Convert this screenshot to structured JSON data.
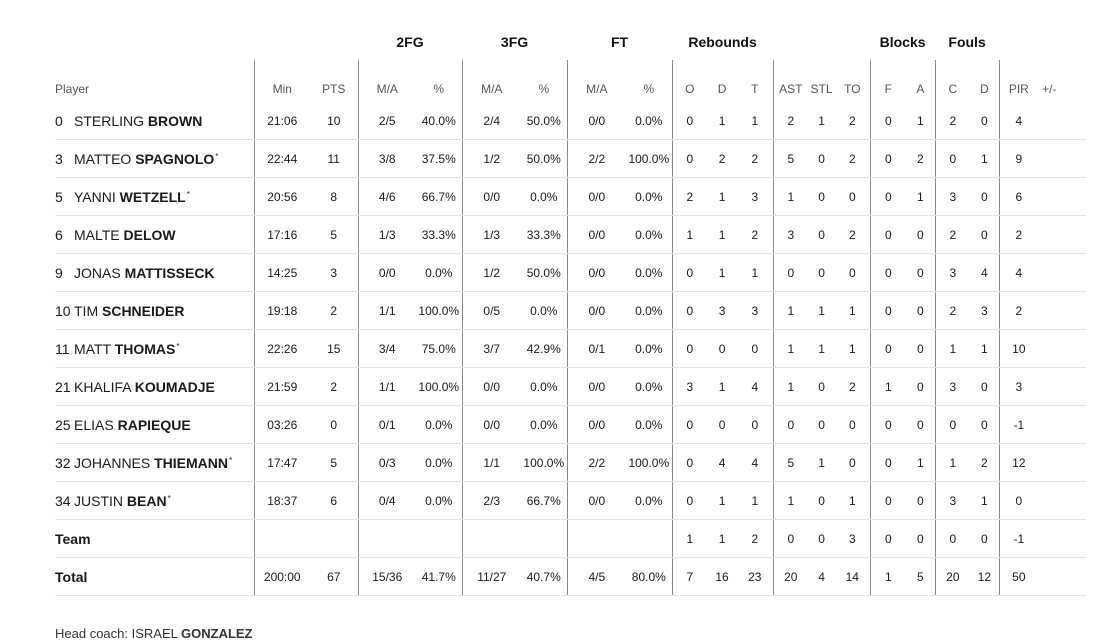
{
  "groups": {
    "twofg": "2FG",
    "threefg": "3FG",
    "ft": "FT",
    "rebounds": "Rebounds",
    "blocks": "Blocks",
    "fouls": "Fouls"
  },
  "headers": {
    "player": "Player",
    "min": "Min",
    "pts": "PTS",
    "fg2_ma": "M/A",
    "fg2_pct": "%",
    "fg3_ma": "M/A",
    "fg3_pct": "%",
    "ft_ma": "M/A",
    "ft_pct": "%",
    "reb_o": "O",
    "reb_d": "D",
    "reb_t": "T",
    "ast": "AST",
    "stl": "STL",
    "to": "TO",
    "blk_f": "F",
    "blk_a": "A",
    "foul_c": "C",
    "foul_d": "D",
    "pir": "PIR",
    "pm": "+/-"
  },
  "players": [
    {
      "num": "0",
      "first": "STERLING",
      "last": "BROWN",
      "star": "",
      "min": "21:06",
      "pts": "10",
      "fg2": "2/5",
      "fg2p": "40.0%",
      "fg3": "2/4",
      "fg3p": "50.0%",
      "ft": "0/0",
      "ftp": "0.0%",
      "o": "0",
      "d": "1",
      "t": "1",
      "ast": "2",
      "stl": "1",
      "to": "2",
      "bf": "0",
      "ba": "1",
      "fc": "2",
      "fd": "0",
      "pir": "4",
      "pm": ""
    },
    {
      "num": "3",
      "first": "MATTEO",
      "last": "SPAGNOLO",
      "star": "*",
      "min": "22:44",
      "pts": "11",
      "fg2": "3/8",
      "fg2p": "37.5%",
      "fg3": "1/2",
      "fg3p": "50.0%",
      "ft": "2/2",
      "ftp": "100.0%",
      "o": "0",
      "d": "2",
      "t": "2",
      "ast": "5",
      "stl": "0",
      "to": "2",
      "bf": "0",
      "ba": "2",
      "fc": "0",
      "fd": "1",
      "pir": "9",
      "pm": ""
    },
    {
      "num": "5",
      "first": "YANNI",
      "last": "WETZELL",
      "star": "*",
      "min": "20:56",
      "pts": "8",
      "fg2": "4/6",
      "fg2p": "66.7%",
      "fg3": "0/0",
      "fg3p": "0.0%",
      "ft": "0/0",
      "ftp": "0.0%",
      "o": "2",
      "d": "1",
      "t": "3",
      "ast": "1",
      "stl": "0",
      "to": "0",
      "bf": "0",
      "ba": "1",
      "fc": "3",
      "fd": "0",
      "pir": "6",
      "pm": ""
    },
    {
      "num": "6",
      "first": "MALTE",
      "last": "DELOW",
      "star": "",
      "min": "17:16",
      "pts": "5",
      "fg2": "1/3",
      "fg2p": "33.3%",
      "fg3": "1/3",
      "fg3p": "33.3%",
      "ft": "0/0",
      "ftp": "0.0%",
      "o": "1",
      "d": "1",
      "t": "2",
      "ast": "3",
      "stl": "0",
      "to": "2",
      "bf": "0",
      "ba": "0",
      "fc": "2",
      "fd": "0",
      "pir": "2",
      "pm": ""
    },
    {
      "num": "9",
      "first": "JONAS",
      "last": "MATTISSECK",
      "star": "",
      "min": "14:25",
      "pts": "3",
      "fg2": "0/0",
      "fg2p": "0.0%",
      "fg3": "1/2",
      "fg3p": "50.0%",
      "ft": "0/0",
      "ftp": "0.0%",
      "o": "0",
      "d": "1",
      "t": "1",
      "ast": "0",
      "stl": "0",
      "to": "0",
      "bf": "0",
      "ba": "0",
      "fc": "3",
      "fd": "4",
      "pir": "4",
      "pm": ""
    },
    {
      "num": "10",
      "first": "TIM",
      "last": "SCHNEIDER",
      "star": "",
      "min": "19:18",
      "pts": "2",
      "fg2": "1/1",
      "fg2p": "100.0%",
      "fg3": "0/5",
      "fg3p": "0.0%",
      "ft": "0/0",
      "ftp": "0.0%",
      "o": "0",
      "d": "3",
      "t": "3",
      "ast": "1",
      "stl": "1",
      "to": "1",
      "bf": "0",
      "ba": "0",
      "fc": "2",
      "fd": "3",
      "pir": "2",
      "pm": ""
    },
    {
      "num": "11",
      "first": "MATT",
      "last": "THOMAS",
      "star": "*",
      "min": "22:26",
      "pts": "15",
      "fg2": "3/4",
      "fg2p": "75.0%",
      "fg3": "3/7",
      "fg3p": "42.9%",
      "ft": "0/1",
      "ftp": "0.0%",
      "o": "0",
      "d": "0",
      "t": "0",
      "ast": "1",
      "stl": "1",
      "to": "1",
      "bf": "0",
      "ba": "0",
      "fc": "1",
      "fd": "1",
      "pir": "10",
      "pm": ""
    },
    {
      "num": "21",
      "first": "KHALIFA",
      "last": "KOUMADJE",
      "star": "",
      "min": "21:59",
      "pts": "2",
      "fg2": "1/1",
      "fg2p": "100.0%",
      "fg3": "0/0",
      "fg3p": "0.0%",
      "ft": "0/0",
      "ftp": "0.0%",
      "o": "3",
      "d": "1",
      "t": "4",
      "ast": "1",
      "stl": "0",
      "to": "2",
      "bf": "1",
      "ba": "0",
      "fc": "3",
      "fd": "0",
      "pir": "3",
      "pm": ""
    },
    {
      "num": "25",
      "first": "ELIAS",
      "last": "RAPIEQUE",
      "star": "",
      "min": "03:26",
      "pts": "0",
      "fg2": "0/1",
      "fg2p": "0.0%",
      "fg3": "0/0",
      "fg3p": "0.0%",
      "ft": "0/0",
      "ftp": "0.0%",
      "o": "0",
      "d": "0",
      "t": "0",
      "ast": "0",
      "stl": "0",
      "to": "0",
      "bf": "0",
      "ba": "0",
      "fc": "0",
      "fd": "0",
      "pir": "-1",
      "pm": ""
    },
    {
      "num": "32",
      "first": "JOHANNES",
      "last": "THIEMANN",
      "star": "*",
      "min": "17:47",
      "pts": "5",
      "fg2": "0/3",
      "fg2p": "0.0%",
      "fg3": "1/1",
      "fg3p": "100.0%",
      "ft": "2/2",
      "ftp": "100.0%",
      "o": "0",
      "d": "4",
      "t": "4",
      "ast": "5",
      "stl": "1",
      "to": "0",
      "bf": "0",
      "ba": "1",
      "fc": "1",
      "fd": "2",
      "pir": "12",
      "pm": ""
    },
    {
      "num": "34",
      "first": "JUSTIN",
      "last": "BEAN",
      "star": "*",
      "min": "18:37",
      "pts": "6",
      "fg2": "0/4",
      "fg2p": "0.0%",
      "fg3": "2/3",
      "fg3p": "66.7%",
      "ft": "0/0",
      "ftp": "0.0%",
      "o": "0",
      "d": "1",
      "t": "1",
      "ast": "1",
      "stl": "0",
      "to": "1",
      "bf": "0",
      "ba": "0",
      "fc": "3",
      "fd": "1",
      "pir": "0",
      "pm": ""
    }
  ],
  "team": {
    "label": "Team",
    "min": "",
    "pts": "",
    "fg2": "",
    "fg2p": "",
    "fg3": "",
    "fg3p": "",
    "ft": "",
    "ftp": "",
    "o": "1",
    "d": "1",
    "t": "2",
    "ast": "0",
    "stl": "0",
    "to": "3",
    "bf": "0",
    "ba": "0",
    "fc": "0",
    "fd": "0",
    "pir": "-1",
    "pm": ""
  },
  "total": {
    "label": "Total",
    "min": "200:00",
    "pts": "67",
    "fg2": "15/36",
    "fg2p": "41.7%",
    "fg3": "11/27",
    "fg3p": "40.7%",
    "ft": "4/5",
    "ftp": "80.0%",
    "o": "7",
    "d": "16",
    "t": "23",
    "ast": "20",
    "stl": "4",
    "to": "14",
    "bf": "1",
    "ba": "5",
    "fc": "20",
    "fd": "12",
    "pir": "50",
    "pm": ""
  },
  "coach": {
    "label": "Head coach:",
    "first": "ISRAEL",
    "last": "GONZALEZ"
  }
}
